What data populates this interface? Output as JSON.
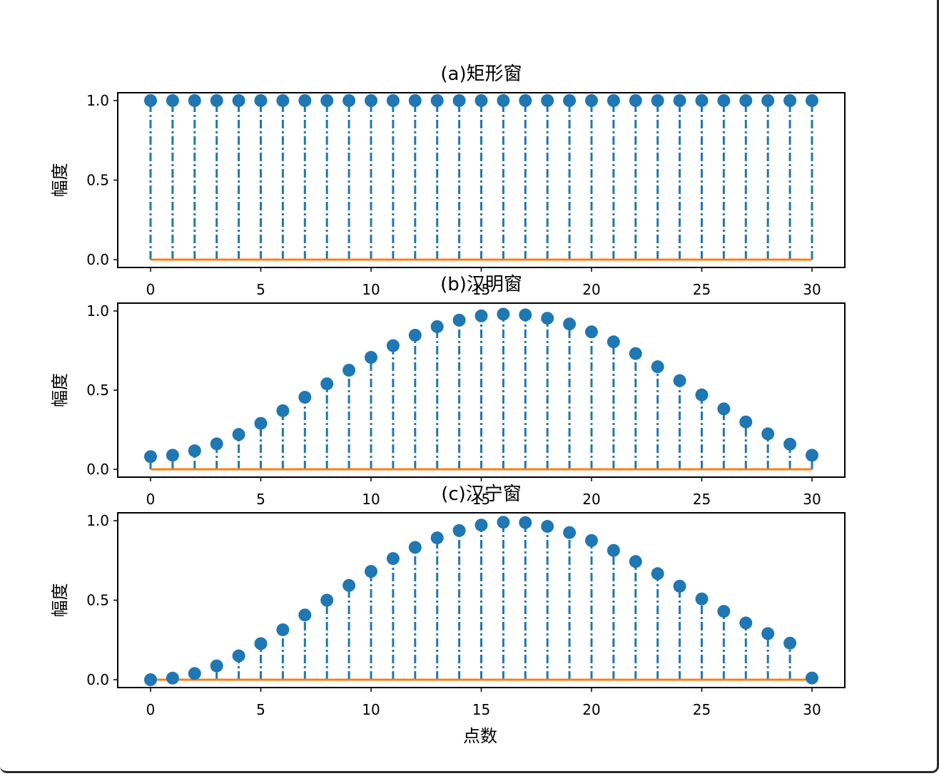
{
  "figure": {
    "xlabel": "点数"
  },
  "colors": {
    "stem": "#1f77b4",
    "baseline": "#ff7f0e",
    "axes": "#000000"
  },
  "chart_data": [
    {
      "type": "stem",
      "title": "(a)矩形窗",
      "xlabel": "",
      "ylabel": "幅度",
      "xlim": [
        0,
        30
      ],
      "ylim": [
        0,
        1
      ],
      "xticks": [
        "0",
        "5",
        "10",
        "15",
        "20",
        "25",
        "30"
      ],
      "yticks": [
        "0.0",
        "0.5",
        "1.0"
      ],
      "x": [
        0,
        1,
        2,
        3,
        4,
        5,
        6,
        7,
        8,
        9,
        10,
        11,
        12,
        13,
        14,
        15,
        16,
        17,
        18,
        19,
        20,
        21,
        22,
        23,
        24,
        25,
        26,
        27,
        28,
        29,
        30
      ],
      "values": [
        1,
        1,
        1,
        1,
        1,
        1,
        1,
        1,
        1,
        1,
        1,
        1,
        1,
        1,
        1,
        1,
        1,
        1,
        1,
        1,
        1,
        1,
        1,
        1,
        1,
        1,
        1,
        1,
        1,
        1,
        1
      ],
      "baseline": 0,
      "linestyle": "dash-dot"
    },
    {
      "type": "stem",
      "title": "(b)汉明窗",
      "xlabel": "",
      "ylabel": "幅度",
      "xlim": [
        0,
        30
      ],
      "ylim": [
        0,
        1
      ],
      "xticks": [
        "0",
        "5",
        "10",
        "15",
        "20",
        "25",
        "30"
      ],
      "yticks": [
        "0.0",
        "0.5",
        "1.0"
      ],
      "x": [
        0,
        1,
        2,
        3,
        4,
        5,
        6,
        7,
        8,
        9,
        10,
        11,
        12,
        13,
        14,
        15,
        16,
        17,
        18,
        19,
        20,
        21,
        22,
        23,
        24,
        25,
        26,
        27,
        28,
        29,
        30
      ],
      "values": [
        0.08,
        0.089,
        0.117,
        0.161,
        0.22,
        0.29,
        0.37,
        0.455,
        0.54,
        0.626,
        0.707,
        0.781,
        0.847,
        0.901,
        0.942,
        0.969,
        0.98,
        0.975,
        0.954,
        0.918,
        0.868,
        0.805,
        0.731,
        0.648,
        0.56,
        0.47,
        0.382,
        0.299,
        0.224,
        0.159,
        0.089
      ],
      "baseline": 0,
      "linestyle": "dash-dot"
    },
    {
      "type": "stem",
      "title": "(c)汉宁窗",
      "xlabel": "",
      "ylabel": "幅度",
      "xlim": [
        0,
        30
      ],
      "ylim": [
        0,
        1
      ],
      "xticks": [
        "0",
        "5",
        "10",
        "15",
        "20",
        "25",
        "30"
      ],
      "yticks": [
        "0.0",
        "0.5",
        "1.0"
      ],
      "x": [
        0,
        1,
        2,
        3,
        4,
        5,
        6,
        7,
        8,
        9,
        10,
        11,
        12,
        13,
        14,
        15,
        16,
        17,
        18,
        19,
        20,
        21,
        22,
        23,
        24,
        25,
        26,
        27,
        28,
        29,
        30
      ],
      "values": [
        0.0,
        0.01,
        0.039,
        0.087,
        0.15,
        0.227,
        0.314,
        0.407,
        0.5,
        0.593,
        0.681,
        0.762,
        0.832,
        0.892,
        0.938,
        0.972,
        0.99,
        0.988,
        0.964,
        0.925,
        0.875,
        0.813,
        0.743,
        0.667,
        0.588,
        0.508,
        0.43,
        0.357,
        0.29,
        0.23,
        0.0107
      ],
      "baseline": 0,
      "linestyle": "dash-dot"
    }
  ]
}
